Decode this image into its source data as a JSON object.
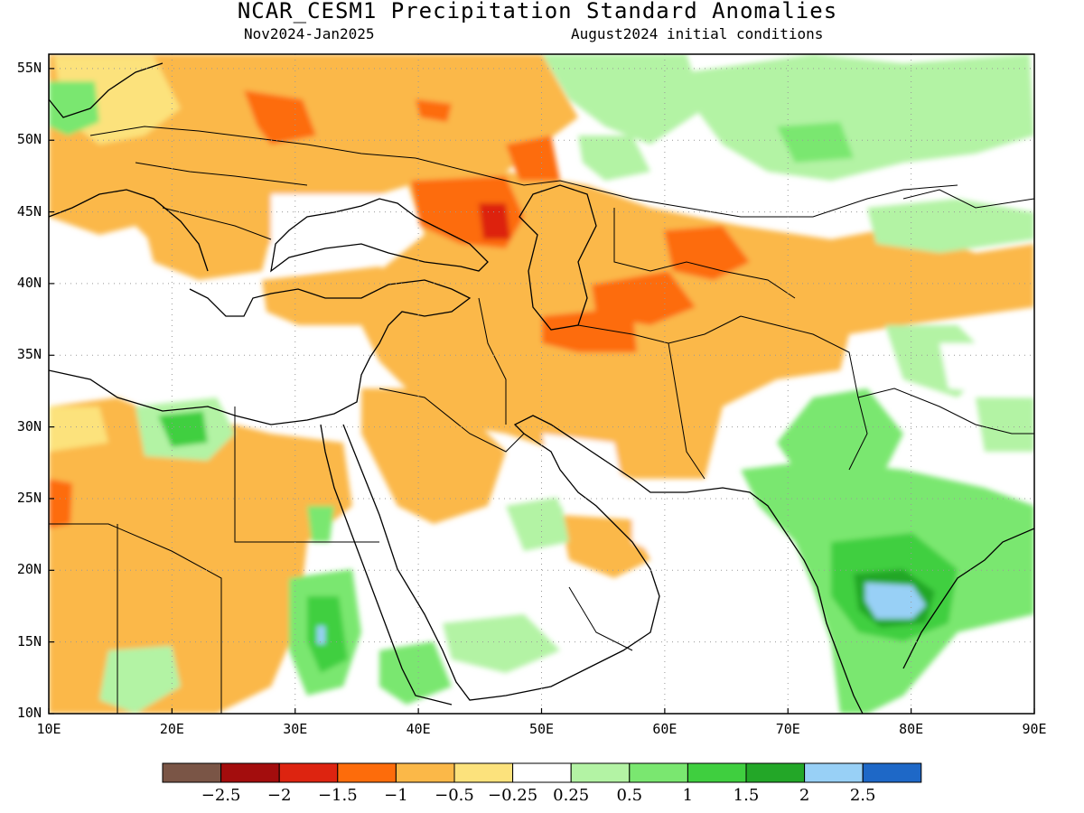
{
  "header": {
    "title": "NCAR_CESM1 Precipitation Standard Anomalies",
    "period": "Nov2024-Jan2025",
    "init": "August2024 initial conditions"
  },
  "axes": {
    "lat_ticks": [
      "55N",
      "50N",
      "45N",
      "40N",
      "35N",
      "30N",
      "25N",
      "20N",
      "15N",
      "10N"
    ],
    "lon_ticks": [
      "10E",
      "20E",
      "30E",
      "40E",
      "50E",
      "60E",
      "70E",
      "80E",
      "90E"
    ],
    "lon_range": [
      10,
      90
    ],
    "lat_range": [
      10,
      56
    ],
    "grid": "dotted"
  },
  "colorbar": {
    "colors": [
      "#7a5546",
      "#a30d0d",
      "#dd2410",
      "#fd6c0b",
      "#fbb848",
      "#fce27c",
      "#ffffff",
      "#b3f3a4",
      "#7ae770",
      "#3fcf3f",
      "#23a728",
      "#98d0f6",
      "#1e68c7"
    ],
    "labels": [
      "−2.5",
      "−2",
      "−1.5",
      "−1",
      "−0.5",
      "−0.25",
      "0.25",
      "0.5",
      "1",
      "1.5",
      "2",
      "2.5"
    ]
  },
  "legend_colors": {
    "orange_light": "#fbb848",
    "yellow": "#fce27c",
    "orange": "#fd6c0b",
    "red": "#dd2410",
    "green_light": "#b3f3a4",
    "green": "#7ae770",
    "green_mid": "#3fcf3f",
    "green_dark": "#23a728",
    "blue_light": "#98d0f6"
  }
}
